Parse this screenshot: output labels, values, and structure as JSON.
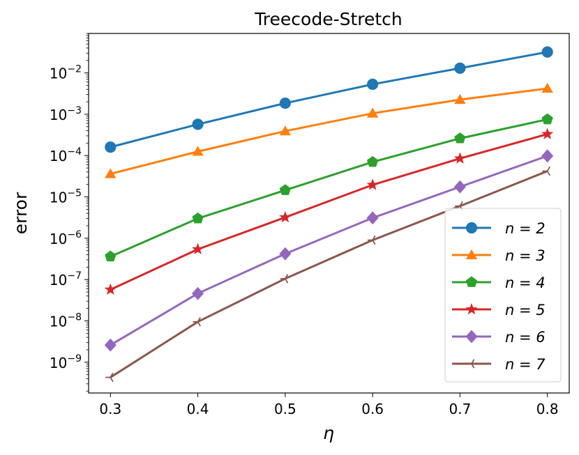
{
  "chart_data": {
    "type": "line",
    "title": "Treecode-Stretch",
    "xlabel": "η",
    "ylabel": "error",
    "yscale": "log",
    "x": [
      0.3,
      0.4,
      0.5,
      0.6,
      0.7,
      0.8
    ],
    "x_tick_labels": [
      "0.3",
      "0.4",
      "0.5",
      "0.6",
      "0.7",
      "0.8"
    ],
    "xlim": [
      0.275,
      0.825
    ],
    "ylim": [
      1.8e-10,
      0.09
    ],
    "y_ticks": [
      {
        "exp": -9,
        "base": "10",
        "power": "−9"
      },
      {
        "exp": -8,
        "base": "10",
        "power": "−8"
      },
      {
        "exp": -7,
        "base": "10",
        "power": "−7"
      },
      {
        "exp": -6,
        "base": "10",
        "power": "−6"
      },
      {
        "exp": -5,
        "base": "10",
        "power": "−5"
      },
      {
        "exp": -4,
        "base": "10",
        "power": "−4"
      },
      {
        "exp": -3,
        "base": "10",
        "power": "−3"
      },
      {
        "exp": -2,
        "base": "10",
        "power": "−2"
      }
    ],
    "grid": false,
    "legend_position": "lower-right",
    "series": [
      {
        "name": "n = 2",
        "color": "#1f77b4",
        "marker": "circle",
        "values": [
          0.00016,
          0.00057,
          0.00185,
          0.0053,
          0.013,
          0.032
        ]
      },
      {
        "name": "n = 3",
        "color": "#ff7f0e",
        "marker": "triangle",
        "values": [
          3.6e-05,
          0.000125,
          0.00039,
          0.00105,
          0.00225,
          0.0042
        ]
      },
      {
        "name": "n = 4",
        "color": "#2ca02c",
        "marker": "pentagon",
        "values": [
          3.6e-07,
          3e-06,
          1.45e-05,
          7e-05,
          0.00026,
          0.00075
        ]
      },
      {
        "name": "n = 5",
        "color": "#d62728",
        "marker": "star",
        "values": [
          5.7e-08,
          5.4e-07,
          3.2e-06,
          1.95e-05,
          8.5e-05,
          0.00033
        ]
      },
      {
        "name": "n = 6",
        "color": "#9467bd",
        "marker": "diamond",
        "values": [
          2.6e-09,
          4.6e-08,
          4.2e-07,
          3.1e-06,
          1.75e-05,
          9.8e-05
        ]
      },
      {
        "name": "n = 7",
        "color": "#8c564b",
        "marker": "tri_left",
        "values": [
          4.3e-10,
          9.5e-09,
          1.05e-07,
          9e-07,
          6e-06,
          4.2e-05
        ]
      }
    ]
  }
}
